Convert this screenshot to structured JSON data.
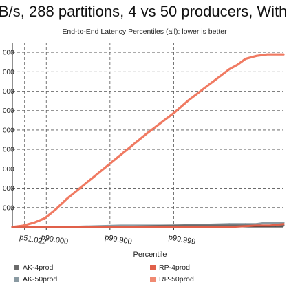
{
  "chart_data": {
    "type": "line",
    "title_partial": "B/s, 288 partitions, 4 vs 50 producers, With T",
    "subtitle": "End-to-End Latency Percentiles (all): lower is better",
    "xlabel": "Percentile",
    "ylabel": "",
    "x_tick_labels": [
      "p51.022",
      "p90.000",
      "p99.900",
      "p99.999"
    ],
    "y_tick_labels": [
      "000",
      "000",
      "000",
      "000",
      "000",
      "000",
      "000",
      "000",
      "000"
    ],
    "grid": true,
    "legend_position": "bottom",
    "legend": [
      {
        "name": "AK-4prod",
        "color": "#6b6b6b"
      },
      {
        "name": "RP-4prod",
        "color": "#e0604a"
      },
      {
        "name": "AK-50prod",
        "color": "#8a9aa2"
      },
      {
        "name": "RP-50prod",
        "color": "#f08a72"
      }
    ],
    "series": [
      {
        "name": "RP-50prod",
        "color": "#f07a62",
        "x": [
          0.0,
          0.04,
          0.08,
          0.12,
          0.16,
          0.2,
          0.3,
          0.4,
          0.5,
          0.55,
          0.6,
          0.65,
          0.7,
          0.75,
          0.8,
          0.83,
          0.86,
          0.88,
          0.9,
          0.94,
          1.0
        ],
        "y": [
          0.0,
          0.01,
          0.03,
          0.06,
          0.12,
          0.19,
          0.34,
          0.49,
          0.64,
          0.71,
          0.78,
          0.86,
          0.93,
          1.0,
          1.07,
          1.1,
          1.14,
          1.15,
          1.16,
          1.17,
          1.17
        ]
      },
      {
        "name": "AK-50prod",
        "color": "#8a9aa2",
        "x": [
          0.0,
          0.2,
          0.4,
          0.6,
          0.8,
          0.86,
          0.9,
          0.94,
          0.97,
          1.0
        ],
        "y": [
          0.0,
          0.0,
          0.01,
          0.01,
          0.02,
          0.02,
          0.02,
          0.03,
          0.03,
          0.03
        ]
      },
      {
        "name": "AK-4prod",
        "color": "#6b6b6b",
        "x": [
          0.0,
          0.2,
          0.4,
          0.6,
          0.8,
          0.9,
          0.97,
          1.0
        ],
        "y": [
          0.0,
          0.0,
          0.0,
          0.01,
          0.01,
          0.01,
          0.01,
          0.01
        ]
      },
      {
        "name": "RP-4prod",
        "color": "#e0604a",
        "x": [
          0.0,
          0.3,
          0.6,
          0.8,
          0.9,
          0.95,
          1.0
        ],
        "y": [
          0.0,
          0.0,
          0.0,
          0.0,
          0.01,
          0.01,
          0.02
        ]
      }
    ],
    "xlim": [
      0,
      1
    ],
    "ylim": [
      0,
      1.25
    ]
  }
}
